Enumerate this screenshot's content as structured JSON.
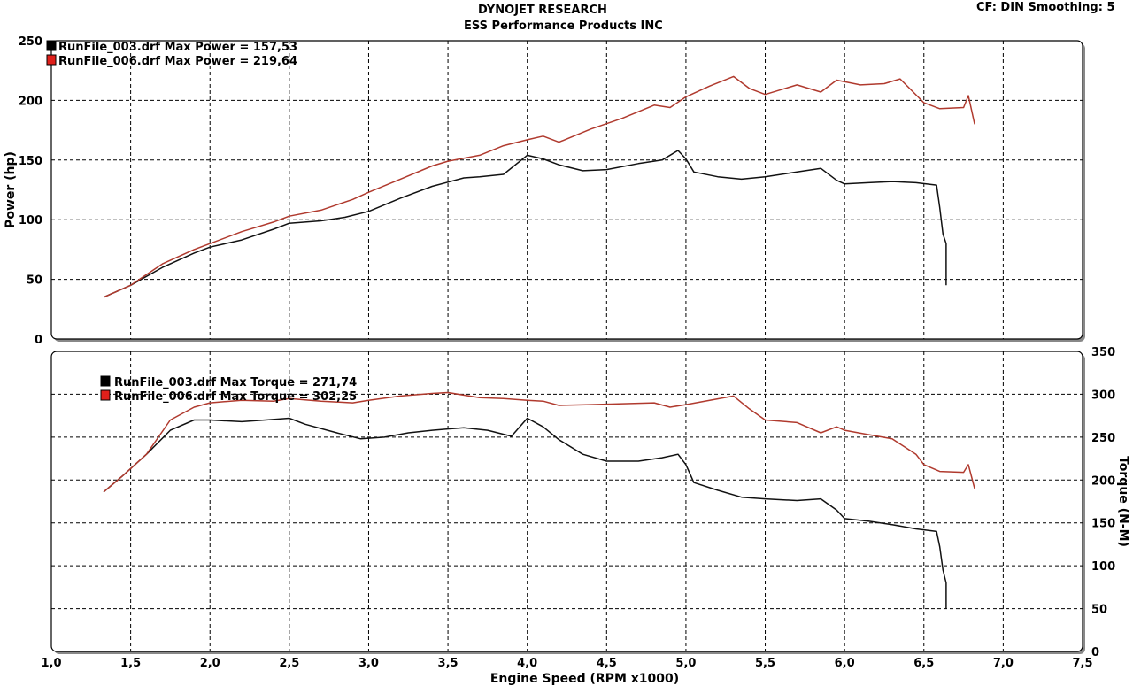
{
  "header": {
    "title": "DYNOJET RESEARCH",
    "subtitle": "ESS Performance Products INC",
    "settings": "CF: DIN  Smoothing: 5"
  },
  "colors": {
    "run_003": "#111111",
    "run_006": "#b03a2e",
    "grid": "#000000"
  },
  "chart_data": [
    {
      "type": "line",
      "title": "",
      "xlabel": "",
      "ylabel": "Power (hp)",
      "xlim": [
        1.0,
        7.5
      ],
      "ylim": [
        0,
        250
      ],
      "x_ticks": [
        "1,0",
        "1,5",
        "2,0",
        "2,5",
        "3,0",
        "3,5",
        "4,0",
        "4,5",
        "5,0",
        "5,5",
        "6,0",
        "6,5",
        "7,0",
        "7,5"
      ],
      "y_ticks": [
        "0",
        "50",
        "100",
        "150",
        "200",
        "250"
      ],
      "grid": true,
      "legend_position": "top-left",
      "series": [
        {
          "name": "RunFile_003.drf Max Power = 157,53",
          "color": "#111111",
          "points": [
            [
              1.33,
              35
            ],
            [
              1.5,
              45
            ],
            [
              1.7,
              60
            ],
            [
              1.9,
              72
            ],
            [
              2.0,
              77
            ],
            [
              2.2,
              83
            ],
            [
              2.4,
              92
            ],
            [
              2.5,
              97
            ],
            [
              2.7,
              99
            ],
            [
              2.85,
              102
            ],
            [
              3.0,
              107
            ],
            [
              3.2,
              118
            ],
            [
              3.4,
              128
            ],
            [
              3.6,
              135
            ],
            [
              3.7,
              136
            ],
            [
              3.85,
              138
            ],
            [
              4.0,
              154
            ],
            [
              4.1,
              151
            ],
            [
              4.2,
              146
            ],
            [
              4.35,
              141
            ],
            [
              4.5,
              142
            ],
            [
              4.7,
              147
            ],
            [
              4.85,
              150
            ],
            [
              4.95,
              158
            ],
            [
              5.0,
              151
            ],
            [
              5.05,
              140
            ],
            [
              5.2,
              136
            ],
            [
              5.35,
              134
            ],
            [
              5.5,
              136
            ],
            [
              5.7,
              140
            ],
            [
              5.85,
              143
            ],
            [
              5.95,
              133
            ],
            [
              6.0,
              130
            ],
            [
              6.15,
              131
            ],
            [
              6.3,
              132
            ],
            [
              6.45,
              131
            ],
            [
              6.58,
              129
            ],
            [
              6.6,
              110
            ],
            [
              6.62,
              88
            ],
            [
              6.64,
              80
            ],
            [
              6.64,
              45
            ]
          ]
        },
        {
          "name": "RunFile_006.drf Max Power = 219,64",
          "color": "#b03a2e",
          "points": [
            [
              1.33,
              35
            ],
            [
              1.5,
              45
            ],
            [
              1.7,
              63
            ],
            [
              1.9,
              75
            ],
            [
              2.0,
              80
            ],
            [
              2.2,
              90
            ],
            [
              2.4,
              98
            ],
            [
              2.5,
              103
            ],
            [
              2.7,
              108
            ],
            [
              2.9,
              117
            ],
            [
              3.0,
              123
            ],
            [
              3.2,
              134
            ],
            [
              3.4,
              145
            ],
            [
              3.5,
              149
            ],
            [
              3.7,
              154
            ],
            [
              3.85,
              162
            ],
            [
              4.0,
              167
            ],
            [
              4.1,
              170
            ],
            [
              4.2,
              165
            ],
            [
              4.4,
              176
            ],
            [
              4.6,
              185
            ],
            [
              4.8,
              196
            ],
            [
              4.9,
              194
            ],
            [
              5.0,
              203
            ],
            [
              5.15,
              212
            ],
            [
              5.3,
              220
            ],
            [
              5.4,
              210
            ],
            [
              5.5,
              205
            ],
            [
              5.7,
              213
            ],
            [
              5.85,
              207
            ],
            [
              5.95,
              217
            ],
            [
              6.1,
              213
            ],
            [
              6.25,
              214
            ],
            [
              6.35,
              218
            ],
            [
              6.5,
              198
            ],
            [
              6.6,
              193
            ],
            [
              6.75,
              194
            ],
            [
              6.78,
              204
            ],
            [
              6.82,
              180
            ]
          ]
        }
      ]
    },
    {
      "type": "line",
      "title": "",
      "xlabel": "Engine Speed (RPM x1000)",
      "ylabel": "Torque (N-M)",
      "xlim": [
        1.0,
        7.5
      ],
      "ylim": [
        0,
        350
      ],
      "x_ticks": [
        "1,0",
        "1,5",
        "2,0",
        "2,5",
        "3,0",
        "3,5",
        "4,0",
        "4,5",
        "5,0",
        "5,5",
        "6,0",
        "6,5",
        "7,0",
        "7,5"
      ],
      "y_ticks": [
        "0",
        "50",
        "100",
        "150",
        "200",
        "250",
        "300",
        "350"
      ],
      "grid": true,
      "legend_position": "top-left",
      "series": [
        {
          "name": "RunFile_003.drf Max Torque = 271,74",
          "color": "#111111",
          "points": [
            [
              1.33,
              186
            ],
            [
              1.45,
              205
            ],
            [
              1.6,
              230
            ],
            [
              1.75,
              258
            ],
            [
              1.9,
              270
            ],
            [
              2.0,
              270
            ],
            [
              2.2,
              268
            ],
            [
              2.35,
              270
            ],
            [
              2.5,
              272
            ],
            [
              2.6,
              265
            ],
            [
              2.8,
              255
            ],
            [
              2.95,
              248
            ],
            [
              3.1,
              250
            ],
            [
              3.25,
              255
            ],
            [
              3.4,
              258
            ],
            [
              3.6,
              261
            ],
            [
              3.75,
              258
            ],
            [
              3.9,
              251
            ],
            [
              4.0,
              272
            ],
            [
              4.1,
              262
            ],
            [
              4.2,
              247
            ],
            [
              4.35,
              230
            ],
            [
              4.5,
              222
            ],
            [
              4.7,
              222
            ],
            [
              4.85,
              226
            ],
            [
              4.95,
              230
            ],
            [
              5.0,
              218
            ],
            [
              5.05,
              197
            ],
            [
              5.2,
              188
            ],
            [
              5.35,
              180
            ],
            [
              5.5,
              178
            ],
            [
              5.7,
              176
            ],
            [
              5.85,
              178
            ],
            [
              5.95,
              165
            ],
            [
              6.0,
              155
            ],
            [
              6.15,
              152
            ],
            [
              6.3,
              148
            ],
            [
              6.45,
              143
            ],
            [
              6.58,
              140
            ],
            [
              6.6,
              122
            ],
            [
              6.62,
              95
            ],
            [
              6.64,
              80
            ],
            [
              6.64,
              50
            ]
          ]
        },
        {
          "name": "RunFile_006.drf Max Torque = 302,25",
          "color": "#b03a2e",
          "points": [
            [
              1.33,
              186
            ],
            [
              1.45,
              205
            ],
            [
              1.6,
              230
            ],
            [
              1.75,
              270
            ],
            [
              1.9,
              285
            ],
            [
              2.0,
              290
            ],
            [
              2.2,
              293
            ],
            [
              2.4,
              292
            ],
            [
              2.5,
              295
            ],
            [
              2.7,
              292
            ],
            [
              2.9,
              290
            ],
            [
              3.0,
              293
            ],
            [
              3.2,
              298
            ],
            [
              3.4,
              301
            ],
            [
              3.5,
              302
            ],
            [
              3.7,
              296
            ],
            [
              3.85,
              295
            ],
            [
              4.0,
              293
            ],
            [
              4.1,
              292
            ],
            [
              4.2,
              287
            ],
            [
              4.4,
              288
            ],
            [
              4.6,
              289
            ],
            [
              4.8,
              290
            ],
            [
              4.9,
              285
            ],
            [
              5.0,
              288
            ],
            [
              5.15,
              293
            ],
            [
              5.3,
              298
            ],
            [
              5.4,
              283
            ],
            [
              5.5,
              270
            ],
            [
              5.7,
              267
            ],
            [
              5.85,
              255
            ],
            [
              5.95,
              262
            ],
            [
              6.0,
              258
            ],
            [
              6.15,
              253
            ],
            [
              6.3,
              248
            ],
            [
              6.45,
              230
            ],
            [
              6.5,
              218
            ],
            [
              6.6,
              210
            ],
            [
              6.75,
              209
            ],
            [
              6.78,
              218
            ],
            [
              6.82,
              190
            ]
          ]
        }
      ]
    }
  ]
}
